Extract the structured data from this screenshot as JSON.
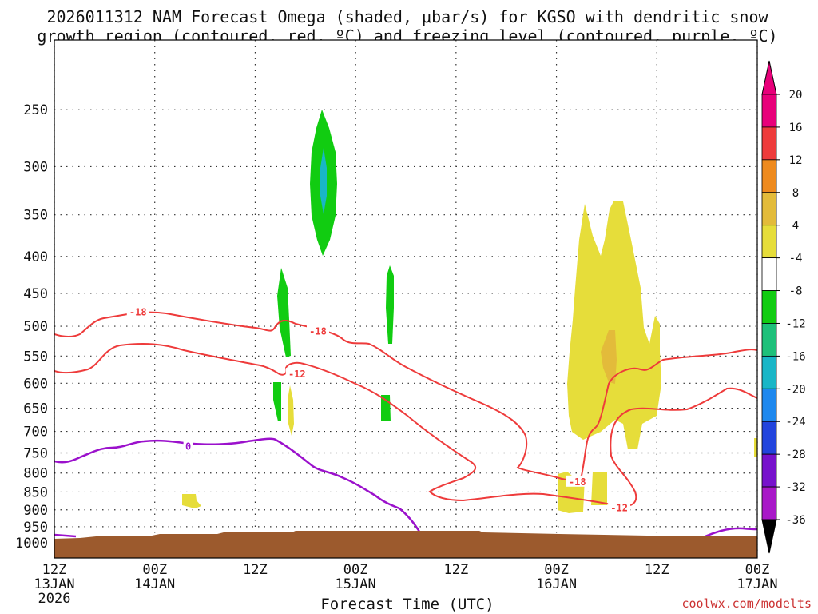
{
  "chart_data": {
    "type": "time-height cross section",
    "title_line1": "2026011312 NAM Forecast Omega (shaded, μbar/s) for KGSO with dendritic snow",
    "title_line2": "growth region (contoured, red, ºC) and freezing level (contoured, purple, ºC)",
    "xlabel": "Forecast Time (UTC)",
    "credit": "coolwx.com/modelts",
    "y_axis": {
      "type": "pressure (log)",
      "range_mb": [
        1050,
        200
      ],
      "ticks": [
        {
          "value": 250,
          "label": "250"
        },
        {
          "value": 300,
          "label": "300"
        },
        {
          "value": 350,
          "label": "350"
        },
        {
          "value": 400,
          "label": "400"
        },
        {
          "value": 450,
          "label": "450"
        },
        {
          "value": 500,
          "label": "500"
        },
        {
          "value": 550,
          "label": "550"
        },
        {
          "value": 600,
          "label": "600"
        },
        {
          "value": 650,
          "label": "650"
        },
        {
          "value": 700,
          "label": "700"
        },
        {
          "value": 750,
          "label": "750"
        },
        {
          "value": 800,
          "label": "800"
        },
        {
          "value": 850,
          "label": "850"
        },
        {
          "value": 900,
          "label": "900"
        },
        {
          "value": 950,
          "label": "950"
        },
        {
          "value": 1000,
          "label": "1000"
        }
      ]
    },
    "x_axis": {
      "unit": "forecast hour",
      "range_hours": [
        0,
        84
      ],
      "ticks": [
        {
          "hour": 0,
          "line1": "12Z",
          "line2": "13JAN",
          "line3": "2026"
        },
        {
          "hour": 12,
          "line1": "00Z",
          "line2": "14JAN",
          "line3": ""
        },
        {
          "hour": 24,
          "line1": "12Z",
          "line2": "",
          "line3": ""
        },
        {
          "hour": 36,
          "line1": "00Z",
          "line2": "15JAN",
          "line3": ""
        },
        {
          "hour": 48,
          "line1": "12Z",
          "line2": "",
          "line3": ""
        },
        {
          "hour": 60,
          "line1": "00Z",
          "line2": "16JAN",
          "line3": ""
        },
        {
          "hour": 72,
          "line1": "12Z",
          "line2": "",
          "line3": ""
        },
        {
          "hour": 84,
          "line1": "00Z",
          "line2": "17JAN",
          "line3": ""
        }
      ]
    },
    "colorbar": {
      "levels": [
        {
          "label": "20",
          "color": "#e8007a"
        },
        {
          "label": "16",
          "color": "#ee3b3b"
        },
        {
          "label": "12",
          "color": "#ee8a1e"
        },
        {
          "label": "8",
          "color": "#e3bb3a"
        },
        {
          "label": "4",
          "color": "#e6dd3a"
        },
        {
          "label": "-4",
          "color": "#ffffff"
        },
        {
          "label": "-8",
          "color": "#11cc11"
        },
        {
          "label": "-12",
          "color": "#1ec07a"
        },
        {
          "label": "-16",
          "color": "#19b6c7"
        },
        {
          "label": "-20",
          "color": "#1e88ee"
        },
        {
          "label": "-24",
          "color": "#2244dd"
        },
        {
          "label": "-28",
          "color": "#7711cc"
        },
        {
          "label": "-32",
          "color": "#a818c8"
        },
        {
          "label": "-36",
          "color": "#9a9a9a"
        }
      ],
      "top_arrow_color": "#e8007a",
      "bottom_arrow_color": "#000000"
    },
    "contour_labels": [
      {
        "text": "-18",
        "hour": 10,
        "p": 478,
        "color": "#ee3b3b"
      },
      {
        "text": "-18",
        "hour": 31.5,
        "p": 508,
        "color": "#ee3b3b"
      },
      {
        "text": "-12",
        "hour": 29,
        "p": 583,
        "color": "#ee3b3b"
      },
      {
        "text": "-18",
        "hour": 62.5,
        "p": 823,
        "color": "#ee3b3b"
      },
      {
        "text": "-12",
        "hour": 67.5,
        "p": 895,
        "color": "#ee3b3b"
      },
      {
        "text": "0",
        "hour": 16,
        "p": 735,
        "color": "#9b11cc"
      }
    ]
  }
}
